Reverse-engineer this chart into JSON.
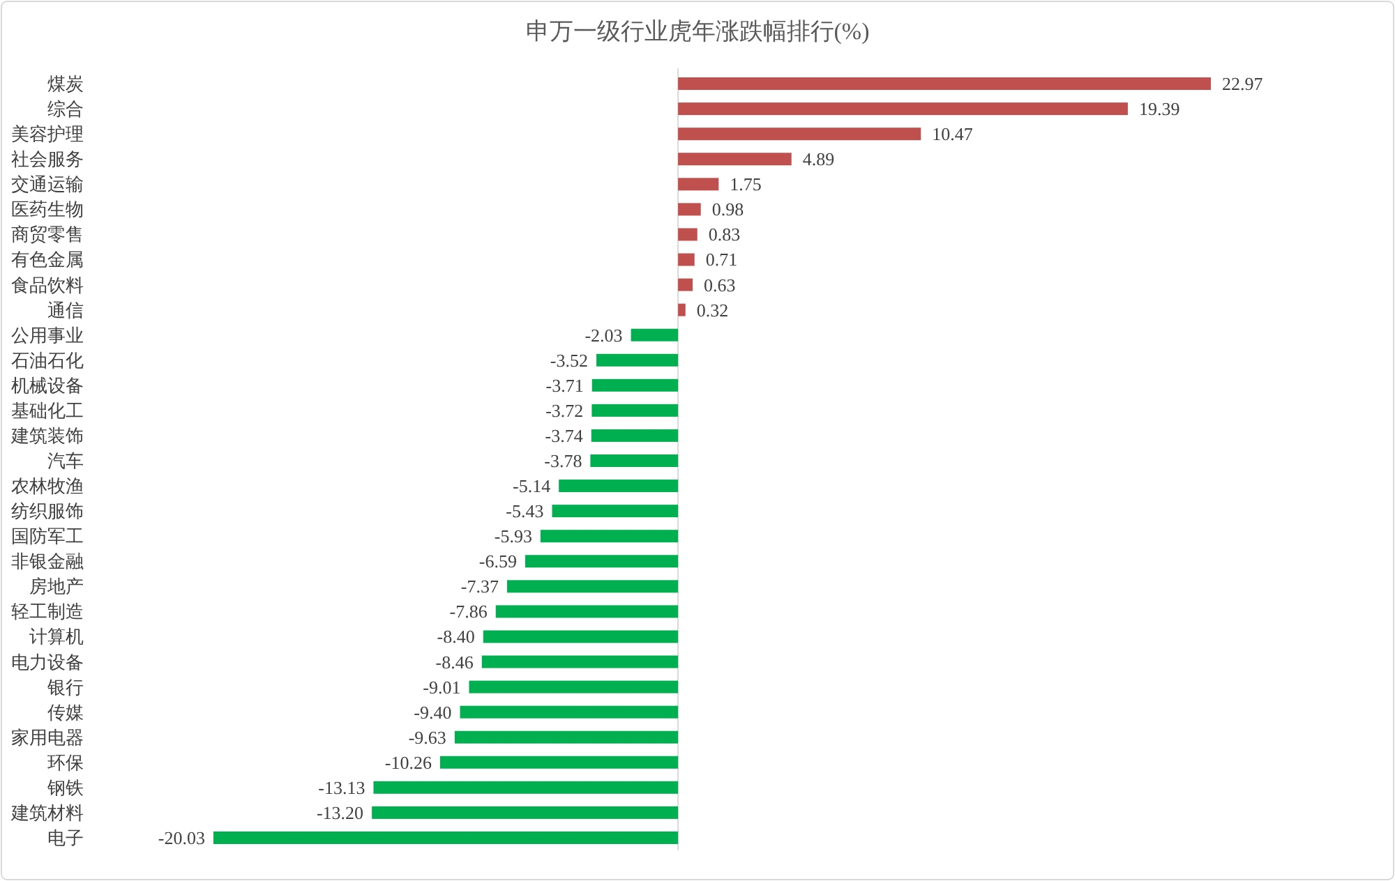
{
  "chart_data": {
    "type": "bar",
    "orientation": "horizontal",
    "title": "申万一级行业虎年涨跌幅排行(%)",
    "categories": [
      "煤炭",
      "综合",
      "美容护理",
      "社会服务",
      "交通运输",
      "医药生物",
      "商贸零售",
      "有色金属",
      "食品饮料",
      "通信",
      "公用事业",
      "石油石化",
      "机械设备",
      "基础化工",
      "建筑装饰",
      "汽车",
      "农林牧渔",
      "纺织服饰",
      "国防军工",
      "非银金融",
      "房地产",
      "轻工制造",
      "计算机",
      "电力设备",
      "银行",
      "传媒",
      "家用电器",
      "环保",
      "钢铁",
      "建筑材料",
      "电子"
    ],
    "values": [
      22.97,
      19.39,
      10.47,
      4.89,
      1.75,
      0.98,
      0.83,
      0.71,
      0.63,
      0.32,
      -2.03,
      -3.52,
      -3.71,
      -3.72,
      -3.74,
      -3.78,
      -5.14,
      -5.43,
      -5.93,
      -6.59,
      -7.37,
      -7.86,
      -8.4,
      -8.46,
      -9.01,
      -9.4,
      -9.63,
      -10.26,
      -13.13,
      -13.2,
      -20.03
    ],
    "value_labels": [
      "22.97",
      "19.39",
      "10.47",
      "4.89",
      "1.75",
      "0.98",
      "0.83",
      "0.71",
      "0.63",
      "0.32",
      "-2.03",
      "-3.52",
      "-3.71",
      "-3.72",
      "-3.74",
      "-3.78",
      "-5.14",
      "-5.43",
      "-5.93",
      "-6.59",
      "-7.37",
      "-7.86",
      "-8.40",
      "-8.46",
      "-9.01",
      "-9.40",
      "-9.63",
      "-10.26",
      "-13.13",
      "-13.20",
      "-20.03"
    ],
    "colors": [
      "#c0504d",
      "#c0504d",
      "#c0504d",
      "#c0504d",
      "#c0504d",
      "#c0504d",
      "#c0504d",
      "#c0504d",
      "#c0504d",
      "#c0504d",
      "#00b050",
      "#00b050",
      "#00b050",
      "#00b050",
      "#00b050",
      "#00b050",
      "#00b050",
      "#00b050",
      "#00b050",
      "#00b050",
      "#00b050",
      "#00b050",
      "#00b050",
      "#00b050",
      "#00b050",
      "#00b050",
      "#00b050",
      "#00b050",
      "#00b050",
      "#00b050",
      "#00b050"
    ]
  }
}
